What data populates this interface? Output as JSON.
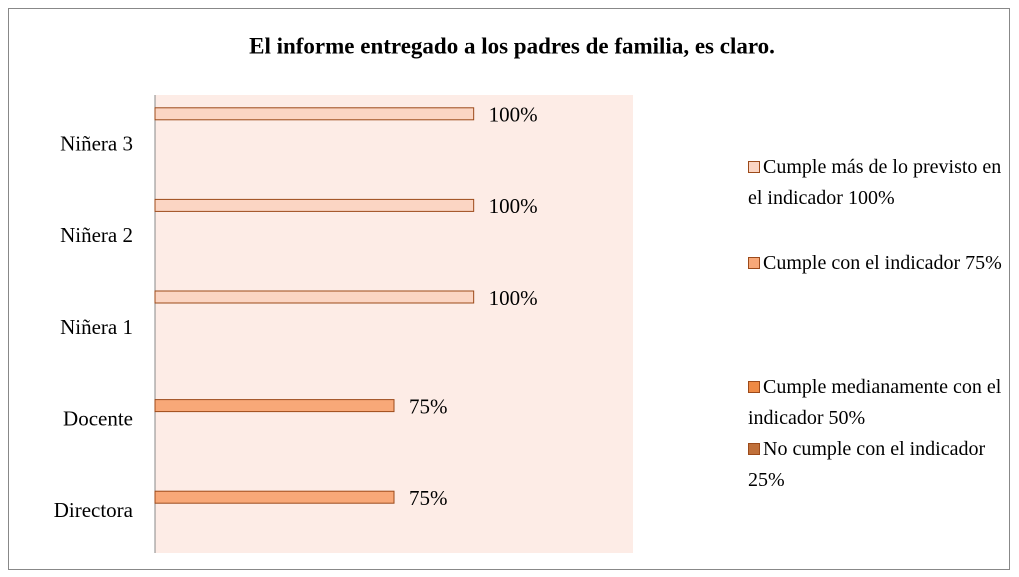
{
  "chart_data": {
    "type": "bar",
    "orientation": "horizontal",
    "title": "El informe entregado a los padres de familia, es claro.",
    "categories": [
      "Directora",
      "Docente",
      "Niñera 1",
      "Niñera 2",
      "Niñera 3"
    ],
    "series": [
      {
        "name": "Cumple más de lo previsto en el indicador 100%",
        "color": "#fbd5c3",
        "values": [
          null,
          null,
          100,
          100,
          100
        ],
        "value_labels": [
          null,
          null,
          "100%",
          "100%",
          "100%"
        ]
      },
      {
        "name": "Cumple con el indicador 75%",
        "color": "#f8a878",
        "values": [
          75,
          75,
          null,
          null,
          null
        ],
        "value_labels": [
          "75%",
          "75%",
          null,
          null,
          null
        ]
      },
      {
        "name": "Cumple medianamente con el indicador 50%",
        "color": "#ee8a45",
        "values": [
          null,
          null,
          null,
          null,
          null
        ]
      },
      {
        "name": "No cumple con el indicador 25%",
        "color": "#c0703a",
        "values": [
          null,
          null,
          null,
          null,
          null
        ]
      }
    ],
    "xlim": [
      0,
      150
    ],
    "legend": "right"
  }
}
